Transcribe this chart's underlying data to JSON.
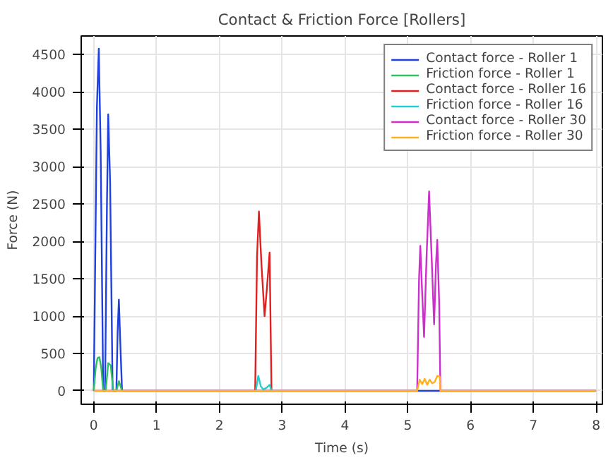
{
  "chart_data": {
    "type": "line",
    "title": "Contact & Friction Force [Rollers]",
    "xlabel": "Time (s)",
    "ylabel": "Force (N)",
    "xlim": [
      -0.2,
      8.1
    ],
    "ylim": [
      -180,
      4750
    ],
    "xticks": [
      0,
      1,
      2,
      3,
      4,
      5,
      6,
      7,
      8
    ],
    "yticks": [
      0,
      500,
      1000,
      1500,
      2000,
      2500,
      3000,
      3500,
      4000,
      4500
    ],
    "grid": true,
    "legend": "top right",
    "series": [
      {
        "name": "Contact force - Roller 1",
        "color": "#2040e0",
        "x": [
          0,
          0.02,
          0.05,
          0.08,
          0.11,
          0.15,
          0.18,
          0.21,
          0.23,
          0.26,
          0.3,
          0.33,
          0.36,
          0.38,
          0.4,
          0.42,
          0.45,
          8
        ],
        "values": [
          0,
          1500,
          3800,
          4580,
          3200,
          0,
          0,
          2500,
          3700,
          2800,
          0,
          0,
          0,
          800,
          1220,
          700,
          0,
          0
        ]
      },
      {
        "name": "Friction force - Roller 1",
        "color": "#30c060",
        "x": [
          0,
          0.03,
          0.06,
          0.09,
          0.12,
          0.15,
          0.19,
          0.23,
          0.27,
          0.31,
          0.36,
          0.4,
          0.45
        ],
        "values": [
          0,
          300,
          440,
          450,
          300,
          0,
          0,
          370,
          340,
          0,
          0,
          130,
          0
        ]
      },
      {
        "name": "Contact force - Roller 16",
        "color": "#e02020",
        "x": [
          2.57,
          2.6,
          2.63,
          2.67,
          2.72,
          2.76,
          2.8,
          2.83
        ],
        "values": [
          0,
          1800,
          2400,
          1700,
          1000,
          1400,
          1850,
          0
        ]
      },
      {
        "name": "Friction force - Roller 16",
        "color": "#20d0d0",
        "x": [
          2.58,
          2.62,
          2.66,
          2.7,
          2.75,
          2.8,
          2.83
        ],
        "values": [
          0,
          200,
          60,
          20,
          40,
          80,
          0
        ]
      },
      {
        "name": "Contact force - Roller 30",
        "color": "#cc30cc",
        "x": [
          0,
          5.15,
          5.18,
          5.2,
          5.23,
          5.26,
          5.3,
          5.34,
          5.38,
          5.42,
          5.45,
          5.47,
          5.5,
          5.52,
          8
        ],
        "values": [
          0,
          0,
          1500,
          1940,
          1300,
          720,
          1800,
          2670,
          1800,
          890,
          1700,
          2020,
          1200,
          0,
          0
        ]
      },
      {
        "name": "Friction force - Roller 30",
        "color": "#ffb020",
        "x": [
          0,
          5.15,
          5.19,
          5.23,
          5.27,
          5.31,
          5.35,
          5.39,
          5.43,
          5.47,
          5.51,
          5.52,
          8
        ],
        "values": [
          0,
          0,
          150,
          90,
          160,
          80,
          150,
          100,
          120,
          200,
          190,
          0,
          0
        ]
      }
    ]
  }
}
